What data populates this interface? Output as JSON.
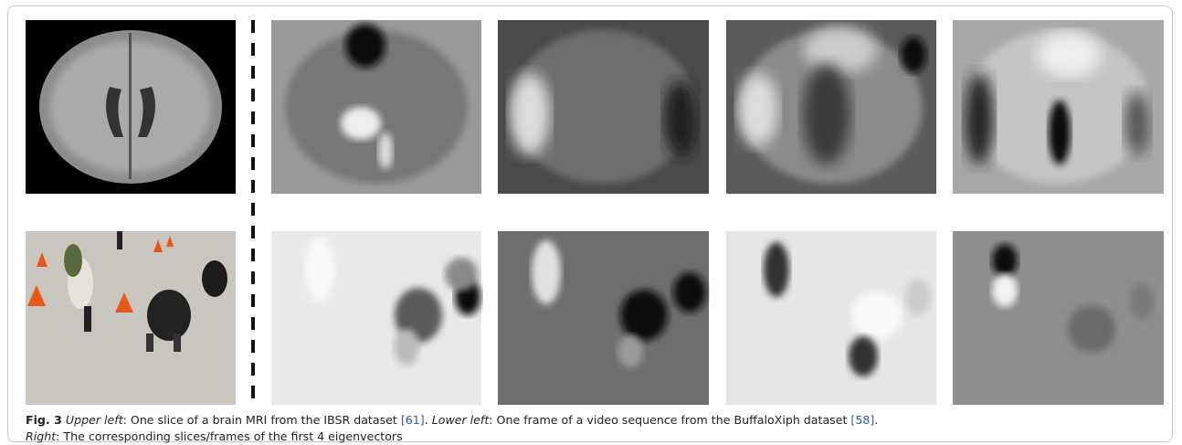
{
  "figure": {
    "caption": {
      "label": "Fig. 3",
      "segments": [
        {
          "text": "Upper left",
          "kind": "italic"
        },
        {
          "text": ": One slice of a brain MRI from the IBSR dataset ",
          "kind": "plain"
        },
        {
          "text": "[61]",
          "kind": "link"
        },
        {
          "text": ". ",
          "kind": "plain"
        },
        {
          "text": "Lower left",
          "kind": "italic"
        },
        {
          "text": ": One frame of a video sequence from the BuffaloXiph dataset ",
          "kind": "plain"
        },
        {
          "text": "[58]",
          "kind": "link"
        },
        {
          "text": ".",
          "kind": "plain",
          "break": true
        },
        {
          "text": "Right",
          "kind": "italic"
        },
        {
          "text": ": The corresponding slices/frames of the first 4 eigenvectors",
          "kind": "plain"
        }
      ]
    }
  }
}
